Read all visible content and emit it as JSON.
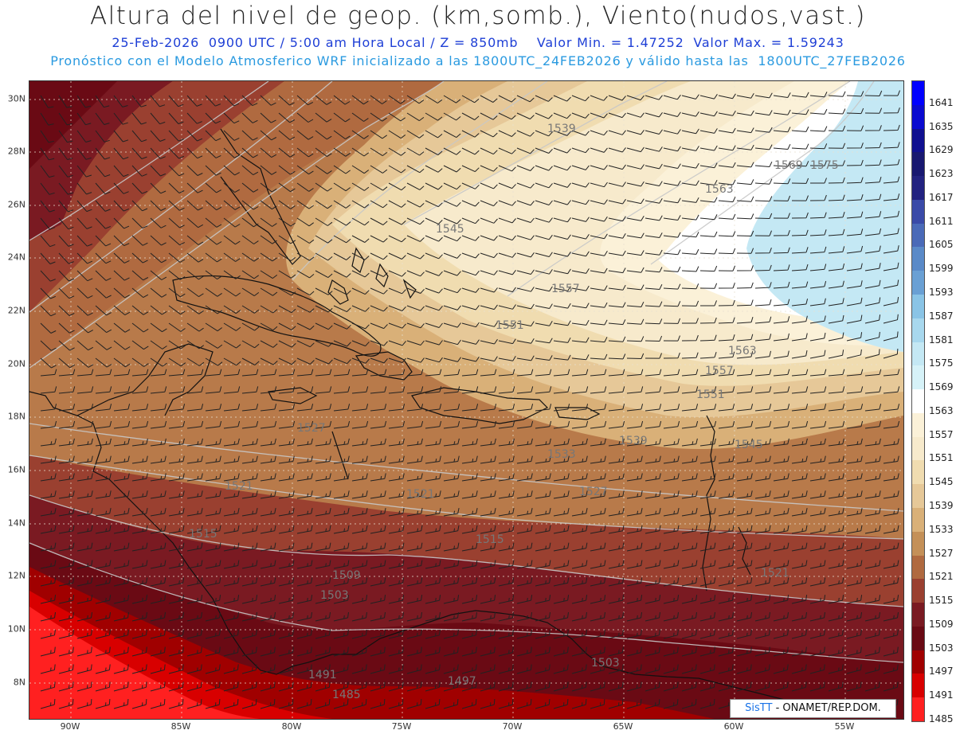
{
  "header": {
    "title": "Altura del nivel de geop. (km,somb.), Viento(nudos,vast.)",
    "line1": "25-Feb-2026  0900 UTC / 5:00 am Hora Local / Z = 850mb    Valor Min. = 1.47252  Valor Max. = 1.59243",
    "line2": "Pronóstico con el Modelo Atmosferico WRF inicializado a las 1800UTC_24FEB2026 y válido hasta las  1800UTC_27FEB2026"
  },
  "map": {
    "lat_labels": [
      "30N",
      "28N",
      "26N",
      "24N",
      "22N",
      "20N",
      "18N",
      "16N",
      "14N",
      "12N",
      "10N",
      "8N"
    ],
    "lon_labels": [
      "90W",
      "85W",
      "80W",
      "75W",
      "70W",
      "65W",
      "60W",
      "55W"
    ],
    "contour_labels": [
      "1539",
      "1545",
      "1557",
      "1563",
      "1569",
      "1575",
      "1551",
      "1563",
      "1557",
      "1551",
      "1545",
      "1539",
      "1533",
      "1527",
      "1527",
      "1521",
      "1521",
      "1515",
      "1515",
      "1509",
      "1503",
      "1503",
      "1497",
      "1491",
      "1485",
      "1521"
    ]
  },
  "colorbar": {
    "labels": [
      "1641",
      "1635",
      "1629",
      "1623",
      "1617",
      "1611",
      "1605",
      "1599",
      "1593",
      "1587",
      "1581",
      "1575",
      "1569",
      "1563",
      "1557",
      "1551",
      "1545",
      "1539",
      "1533",
      "1527",
      "1521",
      "1515",
      "1509",
      "1503",
      "1497",
      "1491",
      "1485"
    ],
    "colors": [
      "#0000ff",
      "#0a0ad0",
      "#101090",
      "#181870",
      "#222280",
      "#3a4aa8",
      "#4a6ab8",
      "#5a8ac8",
      "#6aa0d4",
      "#8ac4e6",
      "#a8d8ee",
      "#c4e8f4",
      "#d6f2f8",
      "#ffffff",
      "#fbf1d8",
      "#f7eacc",
      "#f0dcb0",
      "#e6c898",
      "#d9b078",
      "#c49058",
      "#b06a40",
      "#9a4030",
      "#7a1a22",
      "#6a0a14",
      "#a00000",
      "#d80000",
      "#ff2020"
    ]
  },
  "credit": {
    "logo": "SisTT",
    "text": " - ONAMET/REP.DOM."
  }
}
